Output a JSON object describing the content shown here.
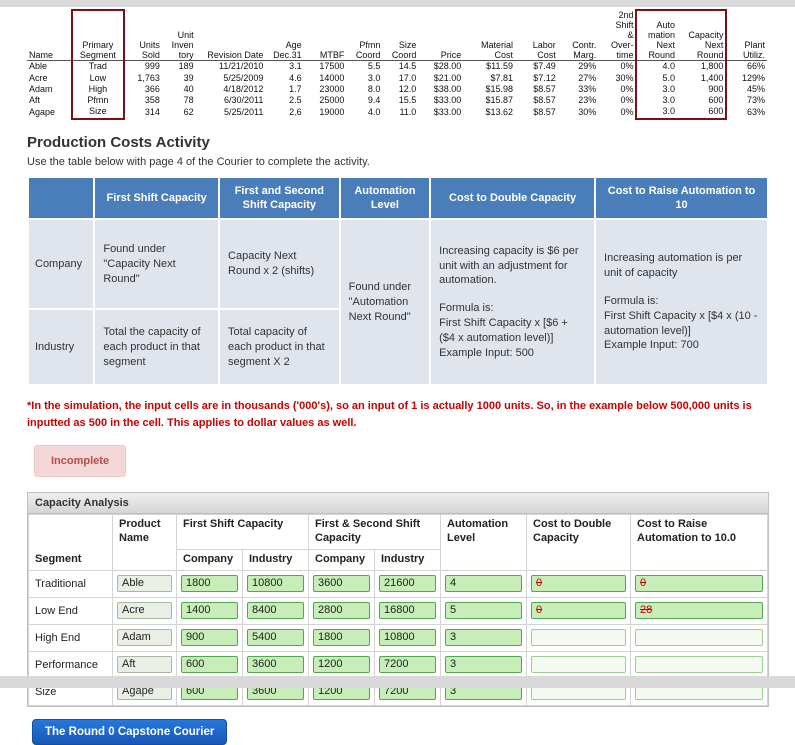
{
  "colors": {
    "header_blue": "#4a7ebb",
    "body_blue": "#dfe4ed",
    "note_red": "#cc0000",
    "box_red": "#7f1010",
    "badge_bg": "#f4d8d8",
    "badge_text": "#b94a48",
    "field_bg": "#c7eeb8",
    "field_border": "#53a551",
    "strike_red": "#cc0000",
    "btn_blue": "#2478dd"
  },
  "courier": {
    "headers": [
      "Name",
      "Primary\nSegment",
      "Units\nSold",
      "Unit\nInven\ntory",
      "Revision Date",
      "Age\nDec.31",
      "MTBF",
      "Pfmn\nCoord",
      "Size\nCoord",
      "Price",
      "Material\nCost",
      "Labor\nCost",
      "Contr.\nMarg.",
      "2nd\nShift\n&\nOver-\ntime",
      "Auto\nmation\nNext\nRound",
      "Capacity\nNext\nRound",
      "Plant\nUtiliz."
    ],
    "rows": [
      [
        "Able",
        "Trad",
        "999",
        "189",
        "11/21/2010",
        "3.1",
        "17500",
        "5.5",
        "14.5",
        "$28.00",
        "$11.59",
        "$7.49",
        "29%",
        "0%",
        "4.0",
        "1,800",
        "66%"
      ],
      [
        "Acre",
        "Low",
        "1,763",
        "39",
        "5/25/2009",
        "4.6",
        "14000",
        "3.0",
        "17.0",
        "$21.00",
        "$7.81",
        "$7.12",
        "27%",
        "30%",
        "5.0",
        "1,400",
        "129%"
      ],
      [
        "Adam",
        "High",
        "366",
        "40",
        "4/18/2012",
        "1.7",
        "23000",
        "8.0",
        "12.0",
        "$38.00",
        "$15.98",
        "$8.57",
        "33%",
        "0%",
        "3.0",
        "900",
        "45%"
      ],
      [
        "Aft",
        "Pfmn",
        "358",
        "78",
        "6/30/2011",
        "2.5",
        "25000",
        "9.4",
        "15.5",
        "$33.00",
        "$15.87",
        "$8.57",
        "23%",
        "0%",
        "3.0",
        "600",
        "73%"
      ],
      [
        "Agape",
        "Size",
        "314",
        "62",
        "5/25/2011",
        "2.6",
        "19000",
        "4.0",
        "11.0",
        "$33.00",
        "$13.62",
        "$8.57",
        "30%",
        "0%",
        "3.0",
        "600",
        "63%"
      ]
    ]
  },
  "activity": {
    "title": "Production Costs Activity",
    "subtitle": "Use the table below with page 4 of the Courier to complete the activity.",
    "table": {
      "h_first_shift": "First Shift Capacity",
      "h_both_shifts": "First and Second Shift Capacity",
      "h_automation": "Automation Level",
      "h_cost_double": "Cost to Double Capacity",
      "h_cost_raise": "Cost to Raise Automation to 10",
      "company_label": "Company",
      "industry_label": "Industry",
      "company_first_shift": "Found under \"Capacity Next Round\"",
      "company_both_shifts": "Capacity Next Round x 2 (shifts)",
      "industry_first_shift": "Total the capacity of each product in that segment",
      "industry_both_shifts": "Total capacity of each product in that segment X 2",
      "automation_text": "Found under \"Automation Next Round\"",
      "cost_double": {
        "intro": "Increasing capacity is $6 per unit with an adjustment for automation.",
        "formula_label": "Formula is:",
        "formula": "First Shift Capacity x [$6 + ($4 x automation level)]",
        "example": "Example Input: 500"
      },
      "cost_raise": {
        "intro": "Increasing automation is per unit of capacity",
        "formula_label": "Formula is:",
        "formula": "First Shift Capacity x [$4 x (10 - automation level)]",
        "example": "Example Input: 700"
      }
    },
    "note": "*In the simulation, the input cells are in thousands ('000's), so an input of 1 is actually 1000 units. So, in the example below 500,000 units is inputted as 500 in the cell. This applies to dollar values as well.",
    "status_badge": "Incomplete"
  },
  "capacity": {
    "title": "Capacity Analysis",
    "headers": {
      "segment": "Segment",
      "product": "Product Name",
      "first_shift": "First Shift Capacity",
      "both_shifts": "First & Second Shift Capacity",
      "automation": "Automation Level",
      "cost_double": "Cost to Double Capacity",
      "cost_raise": "Cost to Raise Automation to 10.0",
      "company": "Company",
      "industry": "Industry"
    },
    "rows": [
      {
        "segment": "Traditional",
        "product": "Able",
        "first_shift_company": "1800",
        "first_shift_industry": "10800",
        "both_shifts_company": "3600",
        "both_shifts_industry": "21600",
        "automation_level": "4",
        "cost_to_double": "0",
        "cost_to_raise": "0",
        "incorrect": true
      },
      {
        "segment": "Low End",
        "product": "Acre",
        "first_shift_company": "1400",
        "first_shift_industry": "8400",
        "both_shifts_company": "2800",
        "both_shifts_industry": "16800",
        "automation_level": "5",
        "cost_to_double": "0",
        "cost_to_raise": "28",
        "incorrect": true
      },
      {
        "segment": "High End",
        "product": "Adam",
        "first_shift_company": "900",
        "first_shift_industry": "5400",
        "both_shifts_company": "1800",
        "both_shifts_industry": "10800",
        "automation_level": "3",
        "cost_to_double": "",
        "cost_to_raise": "",
        "incorrect": false
      },
      {
        "segment": "Performance",
        "product": "Aft",
        "first_shift_company": "600",
        "first_shift_industry": "3600",
        "both_shifts_company": "1200",
        "both_shifts_industry": "7200",
        "automation_level": "3",
        "cost_to_double": "",
        "cost_to_raise": "",
        "incorrect": false
      },
      {
        "segment": "Size",
        "product": "Agape",
        "first_shift_company": "600",
        "first_shift_industry": "3600",
        "both_shifts_company": "1200",
        "both_shifts_industry": "7200",
        "automation_level": "3",
        "cost_to_double": "",
        "cost_to_raise": "",
        "incorrect": false
      }
    ]
  },
  "footer": {
    "button_label": "The Round 0 Capstone Courier"
  }
}
